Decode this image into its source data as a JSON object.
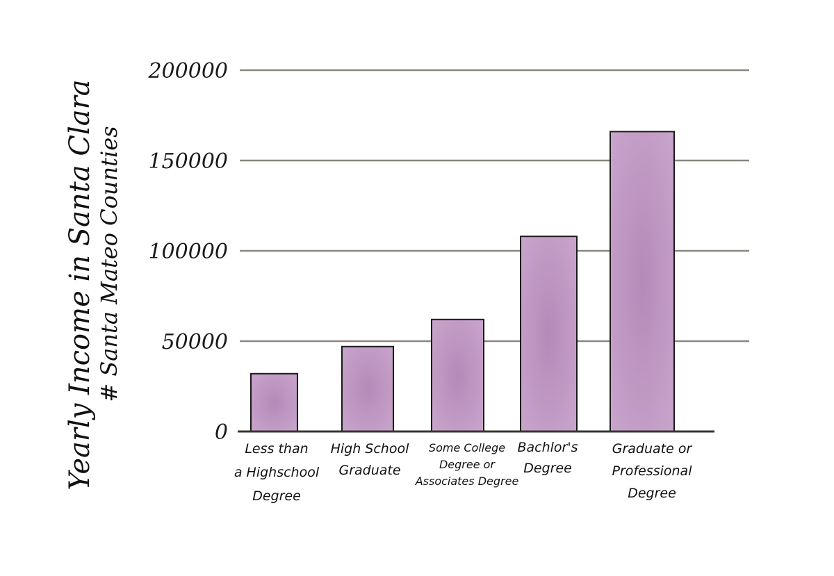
{
  "chart_data": {
    "type": "bar",
    "title": "",
    "ylabel_line1": "Yearly Income in Santa Clara",
    "ylabel_line2": "# Santa Mateo Counties",
    "xlabel": "",
    "categories": [
      [
        "Less than",
        "a Highschool",
        "Degree"
      ],
      [
        "High School",
        "Graduate"
      ],
      [
        "Some College",
        "Degree or",
        "Associates Degree"
      ],
      [
        "Bachlor's",
        "Degree"
      ],
      [
        "Graduate or",
        "Professional",
        "Degree"
      ]
    ],
    "values": [
      32000,
      47000,
      62000,
      108000,
      166000
    ],
    "ylim": [
      0,
      200000
    ],
    "yticks": [
      0,
      50000,
      100000,
      150000,
      200000
    ],
    "ytick_labels": [
      "0",
      "50000",
      "100000",
      "150000",
      "200000"
    ],
    "grid": true,
    "colors": {
      "bar": "#b48ab8",
      "bar_edge": "#e6d2e8"
    }
  }
}
